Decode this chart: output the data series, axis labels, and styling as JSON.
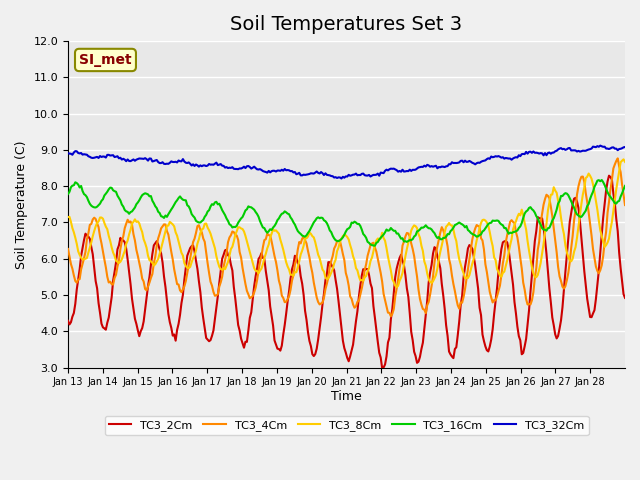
{
  "title": "Soil Temperatures Set 3",
  "xlabel": "Time",
  "ylabel": "Soil Temperature (C)",
  "ylim": [
    3.0,
    12.0
  ],
  "yticks": [
    3.0,
    4.0,
    5.0,
    6.0,
    7.0,
    8.0,
    9.0,
    10.0,
    11.0,
    12.0
  ],
  "date_labels": [
    "Jan 13",
    "Jan 14",
    "Jan 15",
    "Jan 16",
    "Jan 17",
    "Jan 18",
    "Jan 19",
    "Jan 20",
    "Jan 21",
    "Jan 22",
    "Jan 23",
    "Jan 24",
    "Jan 25",
    "Jan 26",
    "Jan 27",
    "Jan 28"
  ],
  "series_colors": [
    "#cc0000",
    "#ff8800",
    "#ffcc00",
    "#00cc00",
    "#0000cc"
  ],
  "series_names": [
    "TC3_2Cm",
    "TC3_4Cm",
    "TC3_8Cm",
    "TC3_16Cm",
    "TC3_32Cm"
  ],
  "legend_box_color": "#ffffcc",
  "legend_box_edge": "#888800",
  "annotation_text": "SI_met",
  "annotation_color": "#880000",
  "plot_bg_color": "#e8e8e8",
  "fig_bg_color": "#f0f0f0",
  "grid_color": "#ffffff",
  "line_width": 1.5,
  "title_fontsize": 14,
  "n_days": 16
}
